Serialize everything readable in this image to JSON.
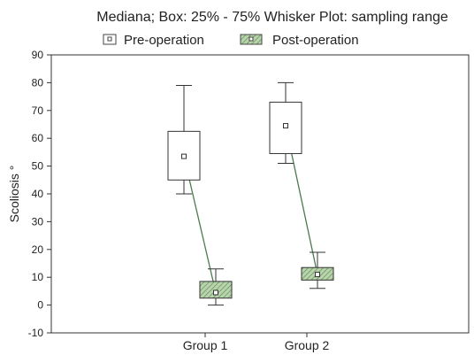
{
  "chart_data": {
    "type": "box",
    "title": "Mediana; Box: 25% - 75%   Whisker Plot: sampling range",
    "ylabel": "Scoliosis °",
    "xlabel": "",
    "ylim": [
      -10,
      90
    ],
    "yticks": [
      -10,
      0,
      10,
      20,
      30,
      40,
      50,
      60,
      70,
      80,
      90
    ],
    "categories": [
      "Group 1",
      "Group 2"
    ],
    "legend_position": "top",
    "series": [
      {
        "name": "Pre-operation",
        "color": "#ffffff",
        "boxes": [
          {
            "category": "Group 1",
            "min": 40,
            "q1": 45,
            "median": 53.5,
            "q3": 62.5,
            "max": 79
          },
          {
            "category": "Group 2",
            "min": 51,
            "q1": 54.5,
            "median": 64.5,
            "q3": 73,
            "max": 80
          }
        ]
      },
      {
        "name": "Post-operation",
        "color": "#a8c79a",
        "boxes": [
          {
            "category": "Group 1",
            "min": 0,
            "q1": 2.5,
            "median": 4.5,
            "q3": 8.5,
            "max": 13
          },
          {
            "category": "Group 2",
            "min": 6,
            "q1": 9,
            "median": 11,
            "q3": 13.5,
            "max": 19
          }
        ]
      }
    ],
    "connector_color": "#4e7a4e"
  }
}
